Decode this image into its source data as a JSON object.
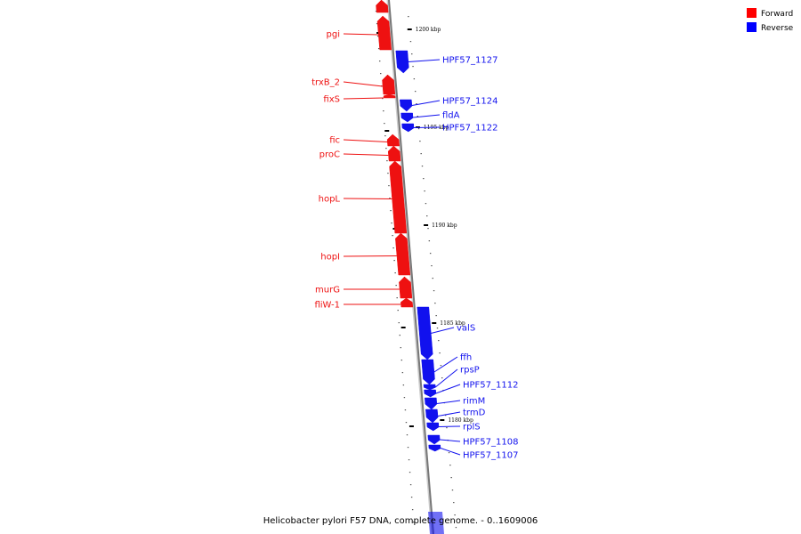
{
  "legend": {
    "items": [
      {
        "label": "Forward",
        "color": "#ff0000"
      },
      {
        "label": "Reverse",
        "color": "#0000ff"
      }
    ]
  },
  "colors": {
    "forward": "#ee1111",
    "reverse": "#1111ee",
    "backbone": "#777777"
  },
  "caption": "Helicobacter pylori F57 DNA, complete genome. - 0..1609006",
  "scale_ticks": [
    "1200 kbp",
    "1195 kbp",
    "1190 kbp",
    "1185 kbp",
    "1180 kbp"
  ],
  "forward_genes": [
    "pgi",
    "trxB_2",
    "fixS",
    "fic",
    "proC",
    "hopL",
    "hopI",
    "murG",
    "fliW-1"
  ],
  "reverse_genes": [
    "HPF57_1127",
    "HPF57_1124",
    "fldA",
    "HPF57_1122",
    "valS",
    "ffh",
    "rpsP",
    "HPF57_1112",
    "rimM",
    "trmD",
    "rplS",
    "HPF57_1108",
    "HPF57_1107"
  ]
}
